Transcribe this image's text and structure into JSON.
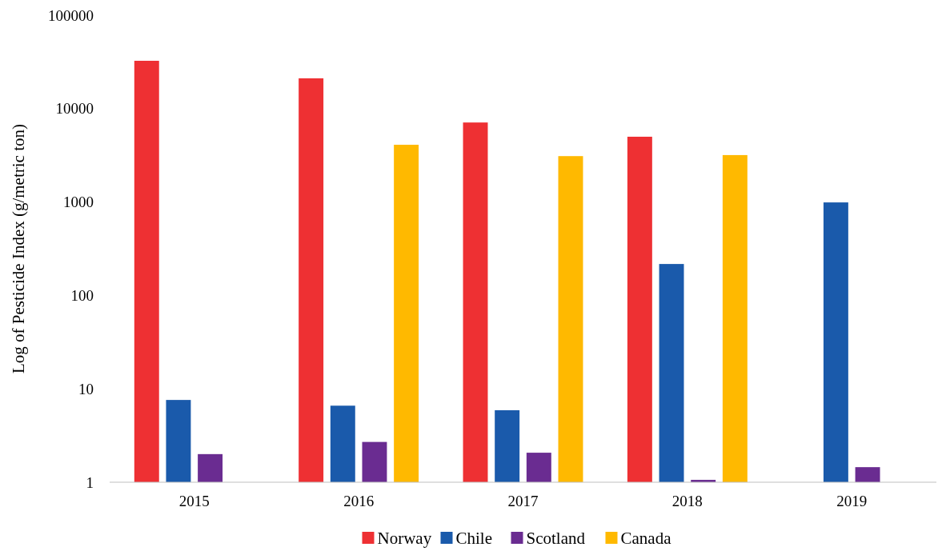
{
  "chart_data": {
    "type": "bar",
    "ylabel": "Log of Pesticide Index (g/metric ton)",
    "categories": [
      "2015",
      "2016",
      "2017",
      "2018",
      "2019"
    ],
    "log": true,
    "ylim": [
      1,
      100000
    ],
    "yticks": [
      1,
      10,
      100,
      1000,
      10000,
      100000
    ],
    "grid": false,
    "legend": "bottom",
    "series": [
      {
        "name": "Norway",
        "color": "#ee3033",
        "values": [
          32500,
          21100,
          7100,
          5000,
          null
        ]
      },
      {
        "name": "Chile",
        "color": "#1a5aab",
        "values": [
          7.6,
          6.6,
          5.9,
          217,
          990
        ]
      },
      {
        "name": "Scotland",
        "color": "#6a2c91",
        "values": [
          2.0,
          2.7,
          2.07,
          1.06,
          1.45
        ]
      },
      {
        "name": "Canada",
        "color": "#ffb900",
        "values": [
          null,
          4100,
          3100,
          3180,
          null
        ]
      }
    ]
  }
}
